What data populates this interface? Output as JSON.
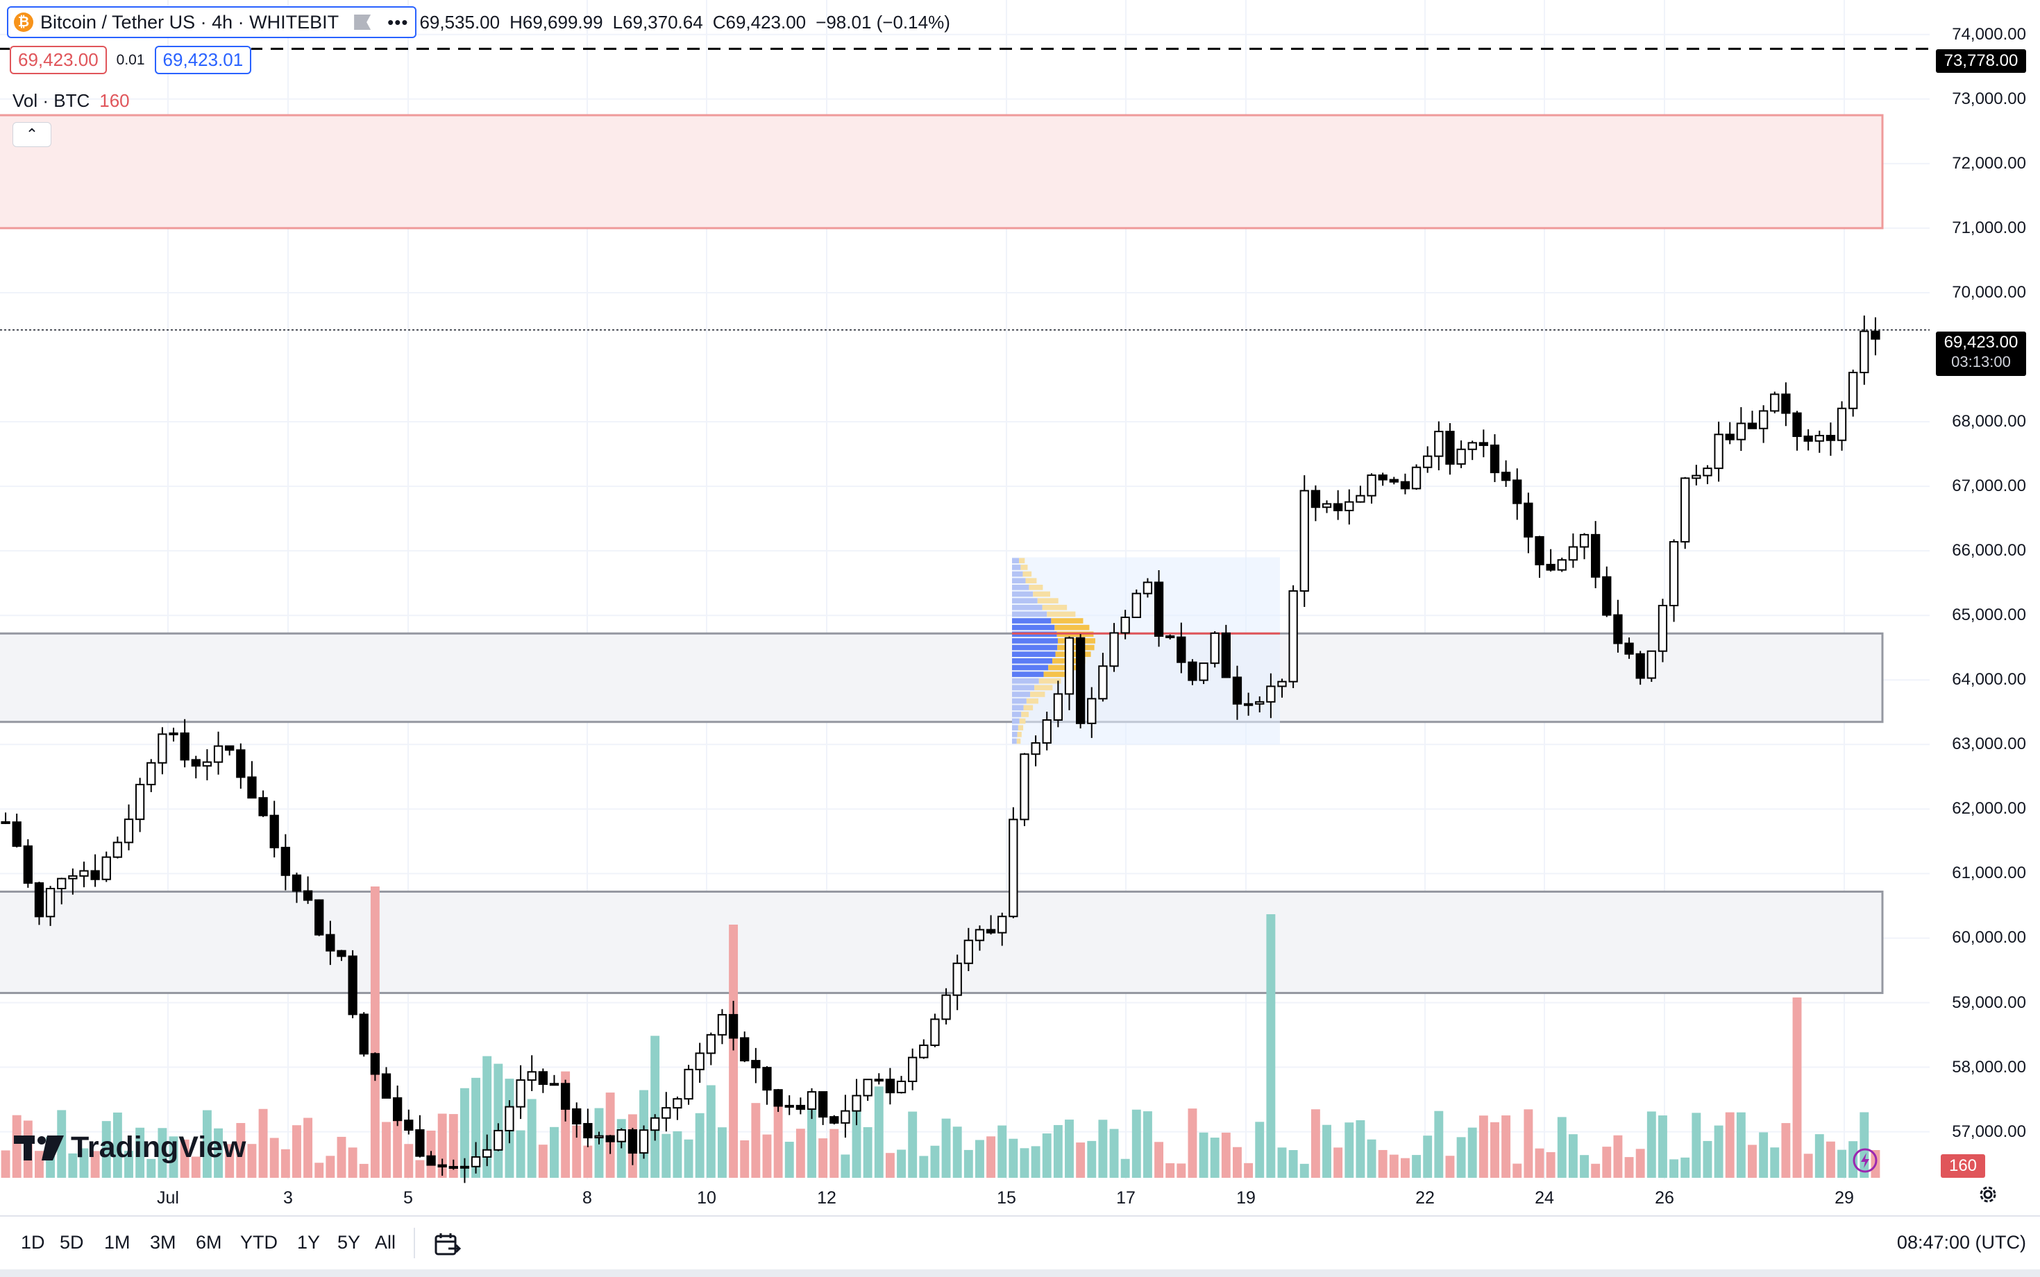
{
  "legend": {
    "symbol": "Bitcoin / Tether US · 4h · WHITEBIT",
    "open": "69,535.00",
    "high": "H69,699.99",
    "low": "L69,370.64",
    "close": "C69,423.00",
    "change": "−98.01 (−0.14%)"
  },
  "price_boxes": {
    "sell": "69,423.00",
    "spread": "0.01",
    "buy": "69,423.01"
  },
  "volume_legend": {
    "label": "Vol · BTC",
    "value": "160"
  },
  "y_axis": {
    "labels": [
      "74,000.00",
      "73,000.00",
      "72,000.00",
      "71,000.00",
      "70,000.00",
      "68,000.00",
      "67,000.00",
      "66,000.00",
      "65,000.00",
      "64,000.00",
      "63,000.00",
      "62,000.00",
      "61,000.00",
      "60,000.00",
      "59,000.00",
      "58,000.00",
      "57,000.00"
    ],
    "label_values": [
      74000,
      73000,
      72000,
      71000,
      70000,
      68000,
      67000,
      66000,
      65000,
      64000,
      63000,
      62000,
      61000,
      60000,
      59000,
      58000,
      57000
    ],
    "target_price_label": "73,778.00",
    "target_price": 73778,
    "last_price_label": "69,423.00",
    "last_price": 69423,
    "countdown": "03:13:00",
    "volume_tag": "160"
  },
  "x_axis": {
    "labels": [
      "Jul",
      "3",
      "5",
      "8",
      "10",
      "12",
      "15",
      "17",
      "19",
      "22",
      "24",
      "26",
      "29"
    ]
  },
  "zones": [
    {
      "name": "supply-zone",
      "from": 71000,
      "to": 72750,
      "fill": "#fcebeb",
      "stroke": "#ef9a9a"
    },
    {
      "name": "demand-zone-upper",
      "from": 63350,
      "to": 64720,
      "fill": "#f3f4f7",
      "stroke": "#9598a1"
    },
    {
      "name": "demand-zone-lower",
      "from": 59150,
      "to": 60720,
      "fill": "#f3f4f7",
      "stroke": "#9598a1"
    }
  ],
  "chart_data": {
    "type": "candlestick",
    "symbol": "Bitcoin / Tether US",
    "interval": "4h",
    "exchange": "WHITEBIT",
    "ylim": [
      56500,
      74200
    ],
    "support_resistance_levels": [
      73778
    ],
    "anchor_closes": [
      [
        0,
        61800
      ],
      [
        12,
        61300
      ],
      [
        24,
        60200
      ],
      [
        40,
        61000
      ],
      [
        55,
        61100
      ],
      [
        70,
        61000
      ],
      [
        88,
        61600
      ],
      [
        104,
        62400
      ],
      [
        120,
        63300
      ],
      [
        140,
        62700
      ],
      [
        155,
        62800
      ],
      [
        172,
        62900
      ],
      [
        195,
        62000
      ],
      [
        210,
        61200
      ],
      [
        226,
        60800
      ],
      [
        248,
        59800
      ],
      [
        260,
        59700
      ],
      [
        272,
        58200
      ],
      [
        285,
        57800
      ],
      [
        300,
        57200
      ],
      [
        315,
        56800
      ],
      [
        330,
        56500
      ],
      [
        350,
        56400
      ],
      [
        365,
        56500
      ],
      [
        380,
        57000
      ],
      [
        398,
        58000
      ],
      [
        415,
        57800
      ],
      [
        432,
        57200
      ],
      [
        448,
        56900
      ],
      [
        465,
        57000
      ],
      [
        480,
        56800
      ],
      [
        497,
        57200
      ],
      [
        515,
        57600
      ],
      [
        530,
        58000
      ],
      [
        550,
        58900
      ],
      [
        565,
        58100
      ],
      [
        582,
        57700
      ],
      [
        600,
        57300
      ],
      [
        618,
        57600
      ],
      [
        635,
        57100
      ],
      [
        650,
        57400
      ],
      [
        665,
        57800
      ],
      [
        680,
        57700
      ],
      [
        700,
        58300
      ],
      [
        720,
        59200
      ],
      [
        740,
        60100
      ],
      [
        752,
        60000
      ],
      [
        765,
        60400
      ],
      [
        775,
        62500
      ],
      [
        790,
        63200
      ],
      [
        805,
        63800
      ],
      [
        815,
        64600
      ],
      [
        825,
        63000
      ],
      [
        840,
        64200
      ],
      [
        855,
        65000
      ],
      [
        865,
        65300
      ],
      [
        875,
        65500
      ],
      [
        882,
        64800
      ],
      [
        895,
        64500
      ],
      [
        905,
        64000
      ],
      [
        918,
        64400
      ],
      [
        930,
        64800
      ],
      [
        940,
        63600
      ],
      [
        952,
        63500
      ],
      [
        962,
        63800
      ],
      [
        972,
        63900
      ],
      [
        980,
        64100
      ],
      [
        988,
        65500
      ],
      [
        995,
        67000
      ],
      [
        1005,
        66700
      ],
      [
        1020,
        66600
      ],
      [
        1035,
        66700
      ],
      [
        1045,
        67000
      ],
      [
        1060,
        67200
      ],
      [
        1075,
        67000
      ],
      [
        1088,
        67500
      ],
      [
        1098,
        68000
      ],
      [
        1108,
        67300
      ],
      [
        1118,
        67500
      ],
      [
        1128,
        68000
      ],
      [
        1140,
        67300
      ],
      [
        1155,
        66800
      ],
      [
        1168,
        66300
      ],
      [
        1180,
        65600
      ],
      [
        1195,
        65800
      ],
      [
        1210,
        66200
      ],
      [
        1222,
        65500
      ],
      [
        1232,
        64700
      ],
      [
        1245,
        64300
      ],
      [
        1255,
        64100
      ],
      [
        1265,
        64600
      ],
      [
        1275,
        65800
      ],
      [
        1285,
        67000
      ],
      [
        1300,
        67200
      ],
      [
        1312,
        67700
      ],
      [
        1325,
        67900
      ],
      [
        1340,
        68000
      ],
      [
        1350,
        68200
      ],
      [
        1358,
        68600
      ],
      [
        1368,
        67800
      ],
      [
        1380,
        67600
      ],
      [
        1392,
        67700
      ],
      [
        1402,
        67900
      ],
      [
        1412,
        68300
      ],
      [
        1420,
        69300
      ],
      [
        1428,
        69500
      ],
      [
        1433,
        69423
      ]
    ],
    "volume_profile": {
      "from": 63000,
      "to": 65900,
      "poc": 64720
    },
    "last": {
      "open": 69535.0,
      "high": 69699.99,
      "low": 69370.64,
      "close": 69423.0,
      "change": -98.01,
      "change_pct": -0.14
    },
    "volume_last": 160
  },
  "range_buttons": [
    "1D",
    "5D",
    "1M",
    "3M",
    "6M",
    "YTD",
    "1Y",
    "5Y",
    "All"
  ],
  "clock": "08:47:00 (UTC)",
  "branding": "TradingView",
  "colors": {
    "up": "#26a69a",
    "down": "#000000",
    "vol_up": "#8fd0c8",
    "vol_down": "#f0a5a5",
    "accent": "#2962ff",
    "sell": "#e0555a"
  }
}
